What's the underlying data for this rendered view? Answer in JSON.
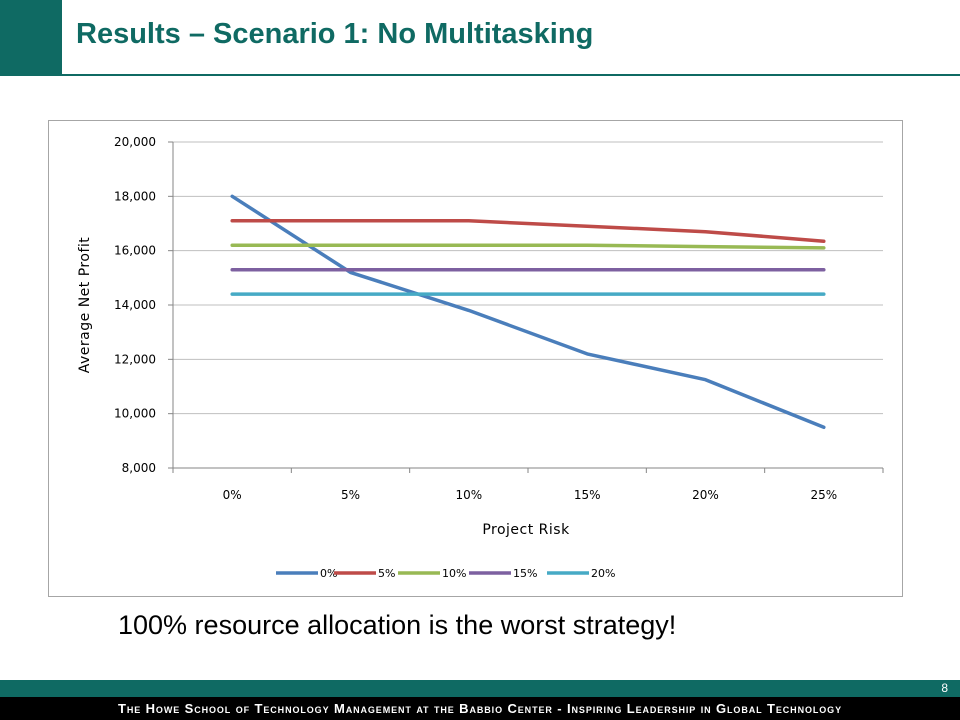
{
  "slide": {
    "title": "Results – Scenario 1: No Multitasking",
    "caption": "100% resource allocation is the worst strategy!",
    "page_number": "8",
    "footer": "The Howe School of Technology Management at the Babbio Center - Inspiring Leadership in Global Technology"
  },
  "colors": {
    "brand": "#0f6a63",
    "gridline": "#bfbfbf",
    "frame": "#a6a6a6"
  },
  "chart_data": {
    "type": "line",
    "title": "",
    "xlabel": "Project Risk",
    "ylabel": "Average Net Profit",
    "categories": [
      "0%",
      "5%",
      "10%",
      "15%",
      "20%",
      "25%"
    ],
    "ylim": [
      8000,
      20000
    ],
    "yticks": [
      8000,
      10000,
      12000,
      14000,
      16000,
      18000,
      20000
    ],
    "ytick_labels": [
      "8,000",
      "10,000",
      "12,000",
      "14,000",
      "16,000",
      "18,000",
      "20,000"
    ],
    "grid": true,
    "legend_position": "bottom",
    "series": [
      {
        "name": "0%",
        "color": "#4a7ebb",
        "values": [
          18000,
          15200,
          13800,
          12200,
          11250,
          9500
        ]
      },
      {
        "name": "5%",
        "color": "#be4b48",
        "values": [
          17100,
          17100,
          17100,
          16900,
          16700,
          16350
        ]
      },
      {
        "name": "10%",
        "color": "#98b954",
        "values": [
          16200,
          16200,
          16200,
          16200,
          16150,
          16100
        ]
      },
      {
        "name": "15%",
        "color": "#7d60a0",
        "values": [
          15300,
          15300,
          15300,
          15300,
          15300,
          15300
        ]
      },
      {
        "name": "20%",
        "color": "#46aac5",
        "values": [
          14400,
          14400,
          14400,
          14400,
          14400,
          14400
        ]
      }
    ]
  }
}
